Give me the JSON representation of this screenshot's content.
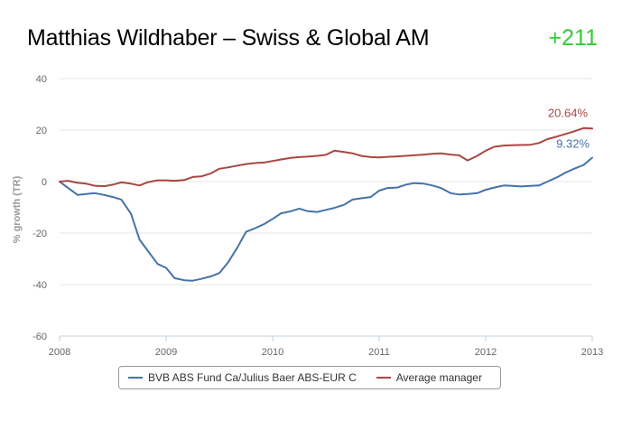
{
  "header": {
    "title": "Matthias Wildhaber – Swiss & Global AM",
    "score": "+211",
    "score_color": "#33cc33"
  },
  "chart_data": {
    "type": "line",
    "title": "Matthias Wildhaber – Swiss & Global AM",
    "xlabel": "",
    "ylabel": "% growth (TR)",
    "xlim": [
      2008,
      2013
    ],
    "ylim": [
      -60,
      40
    ],
    "x_ticks": [
      "2008",
      "2009",
      "2010",
      "2011",
      "2012",
      "2013"
    ],
    "y_ticks": [
      "40",
      "20",
      "0",
      "-20",
      "-40",
      "-60"
    ],
    "grid": true,
    "legend": "bottom",
    "x": [
      2008.0,
      2008.08,
      2008.17,
      2008.25,
      2008.33,
      2008.42,
      2008.5,
      2008.58,
      2008.67,
      2008.75,
      2008.83,
      2008.92,
      2009.0,
      2009.08,
      2009.17,
      2009.25,
      2009.33,
      2009.42,
      2009.5,
      2009.58,
      2009.67,
      2009.75,
      2009.83,
      2009.92,
      2010.0,
      2010.08,
      2010.17,
      2010.25,
      2010.33,
      2010.42,
      2010.5,
      2010.58,
      2010.67,
      2010.75,
      2010.83,
      2010.92,
      2011.0,
      2011.08,
      2011.17,
      2011.25,
      2011.33,
      2011.42,
      2011.5,
      2011.58,
      2011.67,
      2011.75,
      2011.83,
      2011.92,
      2012.0,
      2012.08,
      2012.17,
      2012.25,
      2012.33,
      2012.42,
      2012.5,
      2012.58,
      2012.67,
      2012.75,
      2012.83,
      2012.92,
      2013.0
    ],
    "series": [
      {
        "name": "BVB ABS Fund Ca/Julius Baer ABS-EUR C",
        "color": "#4572a7",
        "end_label": "9.32%",
        "values": [
          0,
          -2.5,
          -5.2,
          -4.8,
          -4.5,
          -5.2,
          -6.0,
          -7.0,
          -12.5,
          -22.5,
          -27.0,
          -32.0,
          -33.5,
          -37.5,
          -38.3,
          -38.5,
          -37.8,
          -36.8,
          -35.5,
          -31.5,
          -25.5,
          -19.5,
          -18.2,
          -16.5,
          -14.5,
          -12.3,
          -11.5,
          -10.5,
          -11.5,
          -11.8,
          -11.0,
          -10.2,
          -9.0,
          -7.0,
          -6.5,
          -6.0,
          -3.5,
          -2.5,
          -2.3,
          -1.2,
          -0.6,
          -0.8,
          -1.5,
          -2.5,
          -4.5,
          -5.0,
          -4.8,
          -4.5,
          -3.2,
          -2.3,
          -1.5,
          -1.7,
          -1.9,
          -1.7,
          -1.5,
          0,
          1.7,
          3.5,
          5.0,
          6.5,
          9.3
        ]
      },
      {
        "name": "Average manager",
        "color": "#aa4643",
        "end_label": "20.64%",
        "values": [
          0,
          0.3,
          -0.5,
          -0.8,
          -1.6,
          -1.8,
          -1.2,
          -0.3,
          -0.8,
          -1.5,
          -0.2,
          0.5,
          0.5,
          0.3,
          0.6,
          1.8,
          2.0,
          3.2,
          5.0,
          5.5,
          6.2,
          6.8,
          7.2,
          7.4,
          8.0,
          8.6,
          9.2,
          9.5,
          9.7,
          10.0,
          10.4,
          12.0,
          11.5,
          11.0,
          10.0,
          9.5,
          9.4,
          9.6,
          9.8,
          10.0,
          10.2,
          10.5,
          10.8,
          11.0,
          10.5,
          10.2,
          8.2,
          10.0,
          12.0,
          13.5,
          14.0,
          14.1,
          14.2,
          14.3,
          15.0,
          16.5,
          17.5,
          18.5,
          19.5,
          20.8,
          20.6
        ]
      }
    ]
  }
}
